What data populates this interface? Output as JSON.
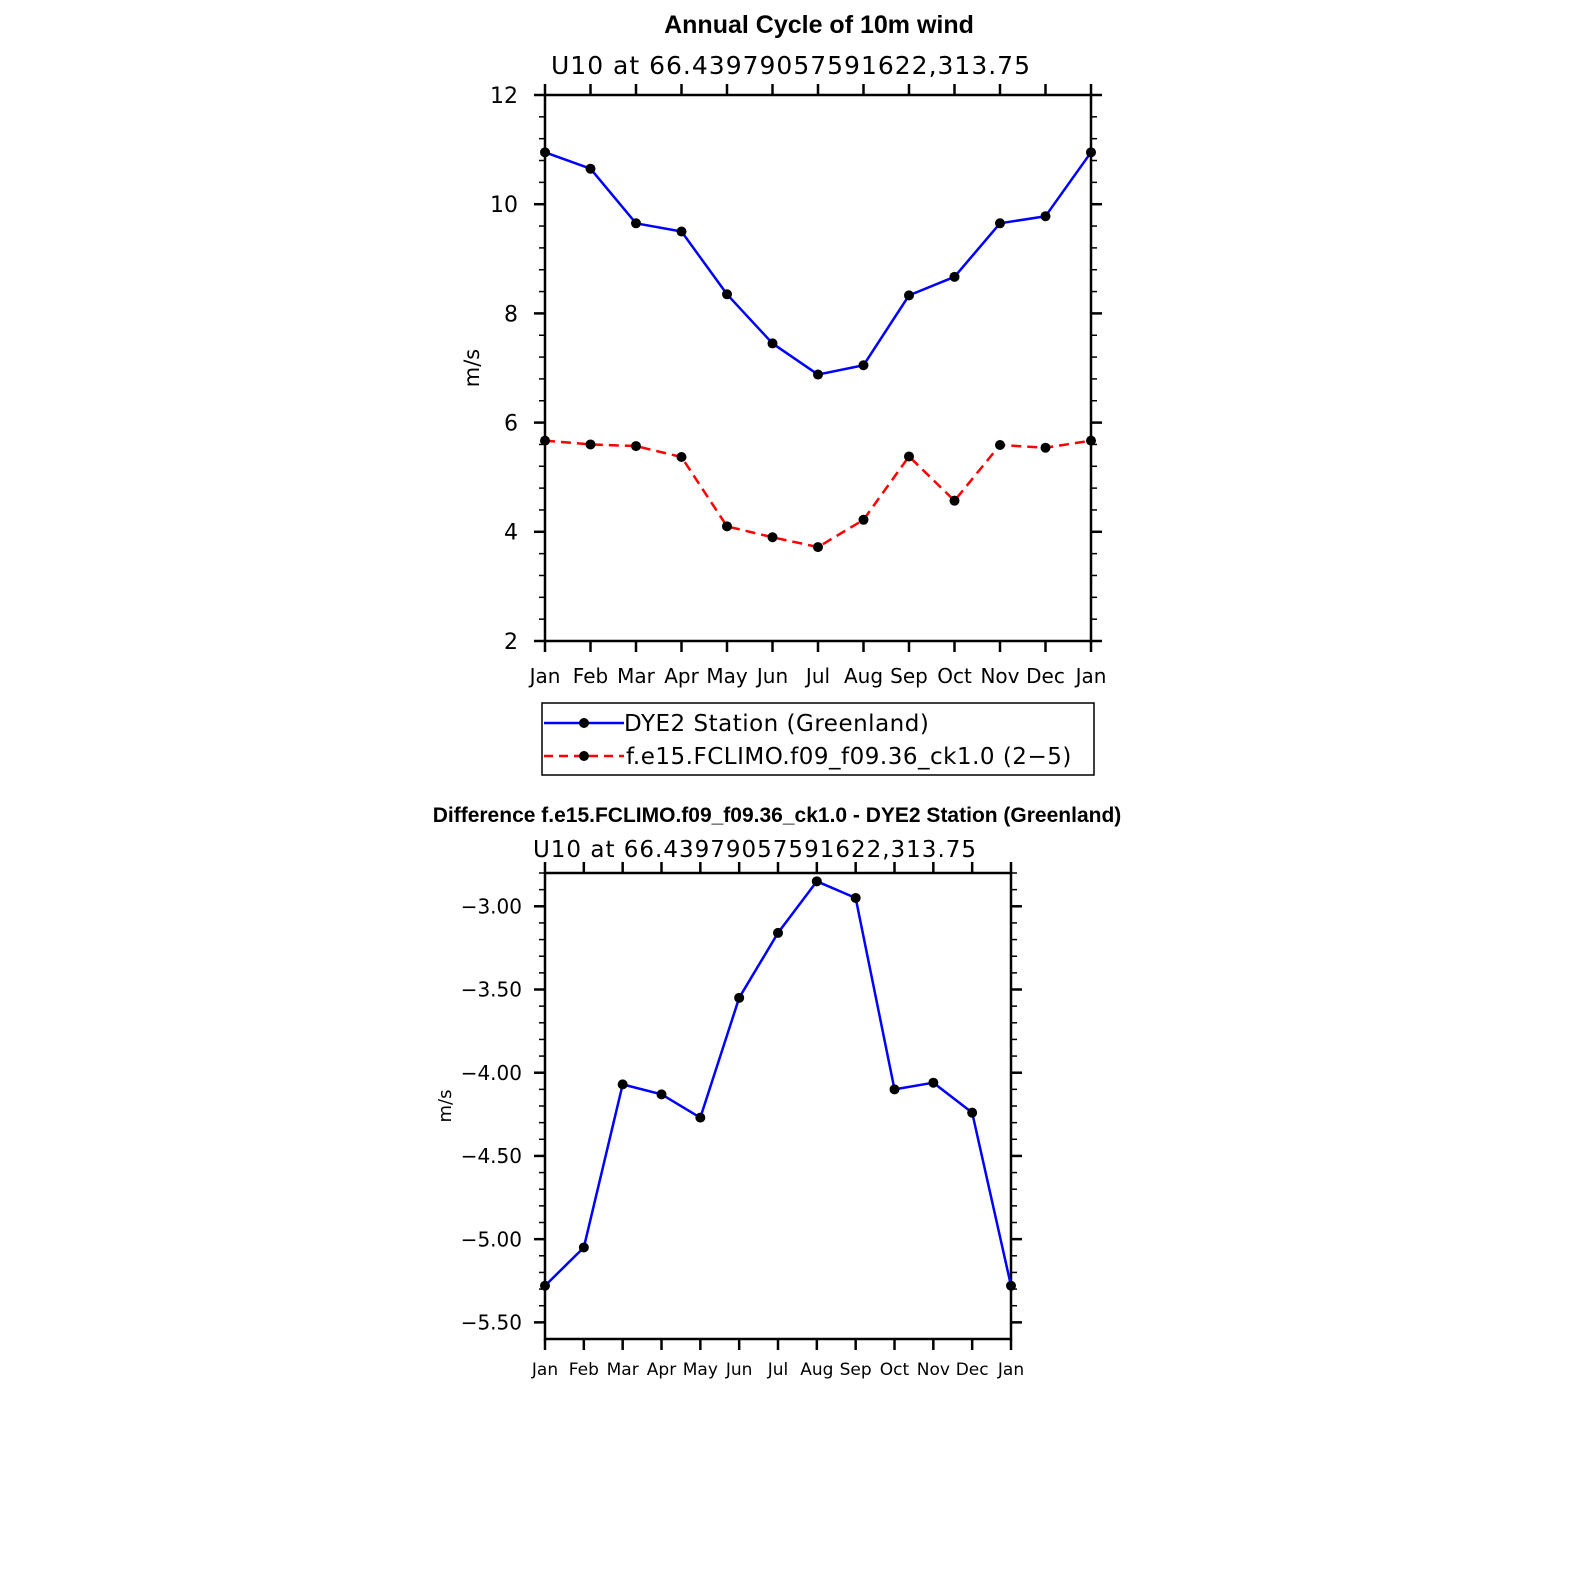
{
  "colors": {
    "obs": "#0000ff",
    "model": "#ff0000",
    "diff": "#0000ff",
    "marker": "#000000",
    "axis": "#000000"
  },
  "chart_data": [
    {
      "type": "line",
      "title": "Annual Cycle of 10m wind",
      "subtitle": "U10 at 66.43979057591622,313.75",
      "ylabel": "m/s",
      "xlabel": "",
      "categories": [
        "Jan",
        "Feb",
        "Mar",
        "Apr",
        "May",
        "Jun",
        "Jul",
        "Aug",
        "Sep",
        "Oct",
        "Nov",
        "Dec",
        "Jan"
      ],
      "ylim": [
        2,
        12
      ],
      "yticks": [
        2,
        4,
        6,
        8,
        10,
        12
      ],
      "ytick_labels": [
        "2",
        "4",
        "6",
        "8",
        "10",
        "12"
      ],
      "series": [
        {
          "name": "DYE2 Station (Greenland)",
          "style": "solid",
          "color": "#0000ff",
          "values": [
            10.95,
            10.65,
            9.65,
            9.5,
            8.35,
            7.45,
            6.88,
            7.05,
            8.33,
            8.67,
            9.65,
            9.78,
            10.95
          ]
        },
        {
          "name": "f.e15.FCLIMO.f09_f09.36_ck1.0 (2−5)",
          "style": "dashed",
          "color": "#ff0000",
          "values": [
            5.67,
            5.6,
            5.57,
            5.37,
            4.1,
            3.9,
            3.72,
            4.22,
            5.38,
            4.57,
            5.59,
            5.54,
            5.67
          ]
        }
      ],
      "legend": "below"
    },
    {
      "type": "line",
      "title": "Difference f.e15.FCLIMO.f09_f09.36_ck1.0 - DYE2 Station (Greenland)",
      "subtitle": "U10 at 66.43979057591622,313.75",
      "ylabel": "m/s",
      "xlabel": "",
      "categories": [
        "Jan",
        "Feb",
        "Mar",
        "Apr",
        "May",
        "Jun",
        "Jul",
        "Aug",
        "Sep",
        "Oct",
        "Nov",
        "Dec",
        "Jan"
      ],
      "ylim": [
        -5.6,
        -2.8
      ],
      "yticks": [
        -5.5,
        -5.0,
        -4.5,
        -4.0,
        -3.5,
        -3.0
      ],
      "ytick_labels": [
        "−5.50",
        "−5.00",
        "−4.50",
        "−4.00",
        "−3.50",
        "−3.00"
      ],
      "series": [
        {
          "name": "Difference",
          "style": "solid",
          "color": "#0000ff",
          "values": [
            -5.28,
            -5.05,
            -4.07,
            -4.13,
            -4.27,
            -3.55,
            -3.16,
            -2.85,
            -2.95,
            -4.1,
            -4.06,
            -4.24,
            -5.28
          ]
        }
      ]
    }
  ]
}
